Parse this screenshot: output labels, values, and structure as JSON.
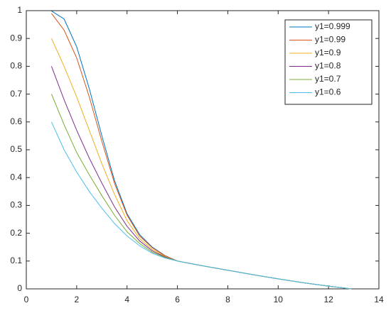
{
  "chart_data": {
    "type": "line",
    "x": [
      1,
      1.5,
      2,
      2.5,
      3,
      3.5,
      4,
      4.5,
      5,
      5.5,
      6,
      7,
      8,
      9,
      10,
      11,
      12,
      12.9
    ],
    "series": [
      {
        "name": "y1=0.999",
        "color": "#0072BD",
        "values": [
          0.999,
          0.97,
          0.87,
          0.72,
          0.55,
          0.39,
          0.27,
          0.195,
          0.15,
          0.12,
          0.1,
          0.083,
          0.067,
          0.051,
          0.036,
          0.022,
          0.01,
          0
        ]
      },
      {
        "name": "y1=0.99",
        "color": "#D95319",
        "values": [
          0.99,
          0.93,
          0.83,
          0.69,
          0.53,
          0.38,
          0.265,
          0.19,
          0.148,
          0.119,
          0.1,
          0.083,
          0.067,
          0.051,
          0.036,
          0.022,
          0.01,
          0
        ]
      },
      {
        "name": "y1=0.9",
        "color": "#EDB120",
        "values": [
          0.9,
          0.8,
          0.69,
          0.57,
          0.45,
          0.34,
          0.245,
          0.18,
          0.142,
          0.117,
          0.1,
          0.083,
          0.067,
          0.051,
          0.036,
          0.022,
          0.01,
          0
        ]
      },
      {
        "name": "y1=0.8",
        "color": "#7E2F8E",
        "values": [
          0.8,
          0.68,
          0.57,
          0.47,
          0.38,
          0.295,
          0.225,
          0.172,
          0.137,
          0.115,
          0.1,
          0.083,
          0.067,
          0.051,
          0.036,
          0.022,
          0.01,
          0
        ]
      },
      {
        "name": "y1=0.7",
        "color": "#77AC30",
        "values": [
          0.7,
          0.59,
          0.49,
          0.41,
          0.335,
          0.265,
          0.205,
          0.163,
          0.132,
          0.113,
          0.1,
          0.083,
          0.067,
          0.051,
          0.036,
          0.022,
          0.01,
          0
        ]
      },
      {
        "name": "y1=0.6",
        "color": "#4DBEEE",
        "values": [
          0.6,
          0.5,
          0.42,
          0.35,
          0.29,
          0.235,
          0.19,
          0.155,
          0.128,
          0.111,
          0.1,
          0.083,
          0.067,
          0.051,
          0.036,
          0.022,
          0.01,
          0
        ]
      }
    ],
    "xlim": [
      0,
      14
    ],
    "xticks": [
      0,
      2,
      4,
      6,
      8,
      10,
      12,
      14
    ],
    "ylim": [
      0,
      1
    ],
    "yticks": [
      0,
      0.1,
      0.2,
      0.3,
      0.4,
      0.5,
      0.6,
      0.7,
      0.8,
      0.9,
      1
    ],
    "grid": false,
    "legend": "upper-right"
  }
}
